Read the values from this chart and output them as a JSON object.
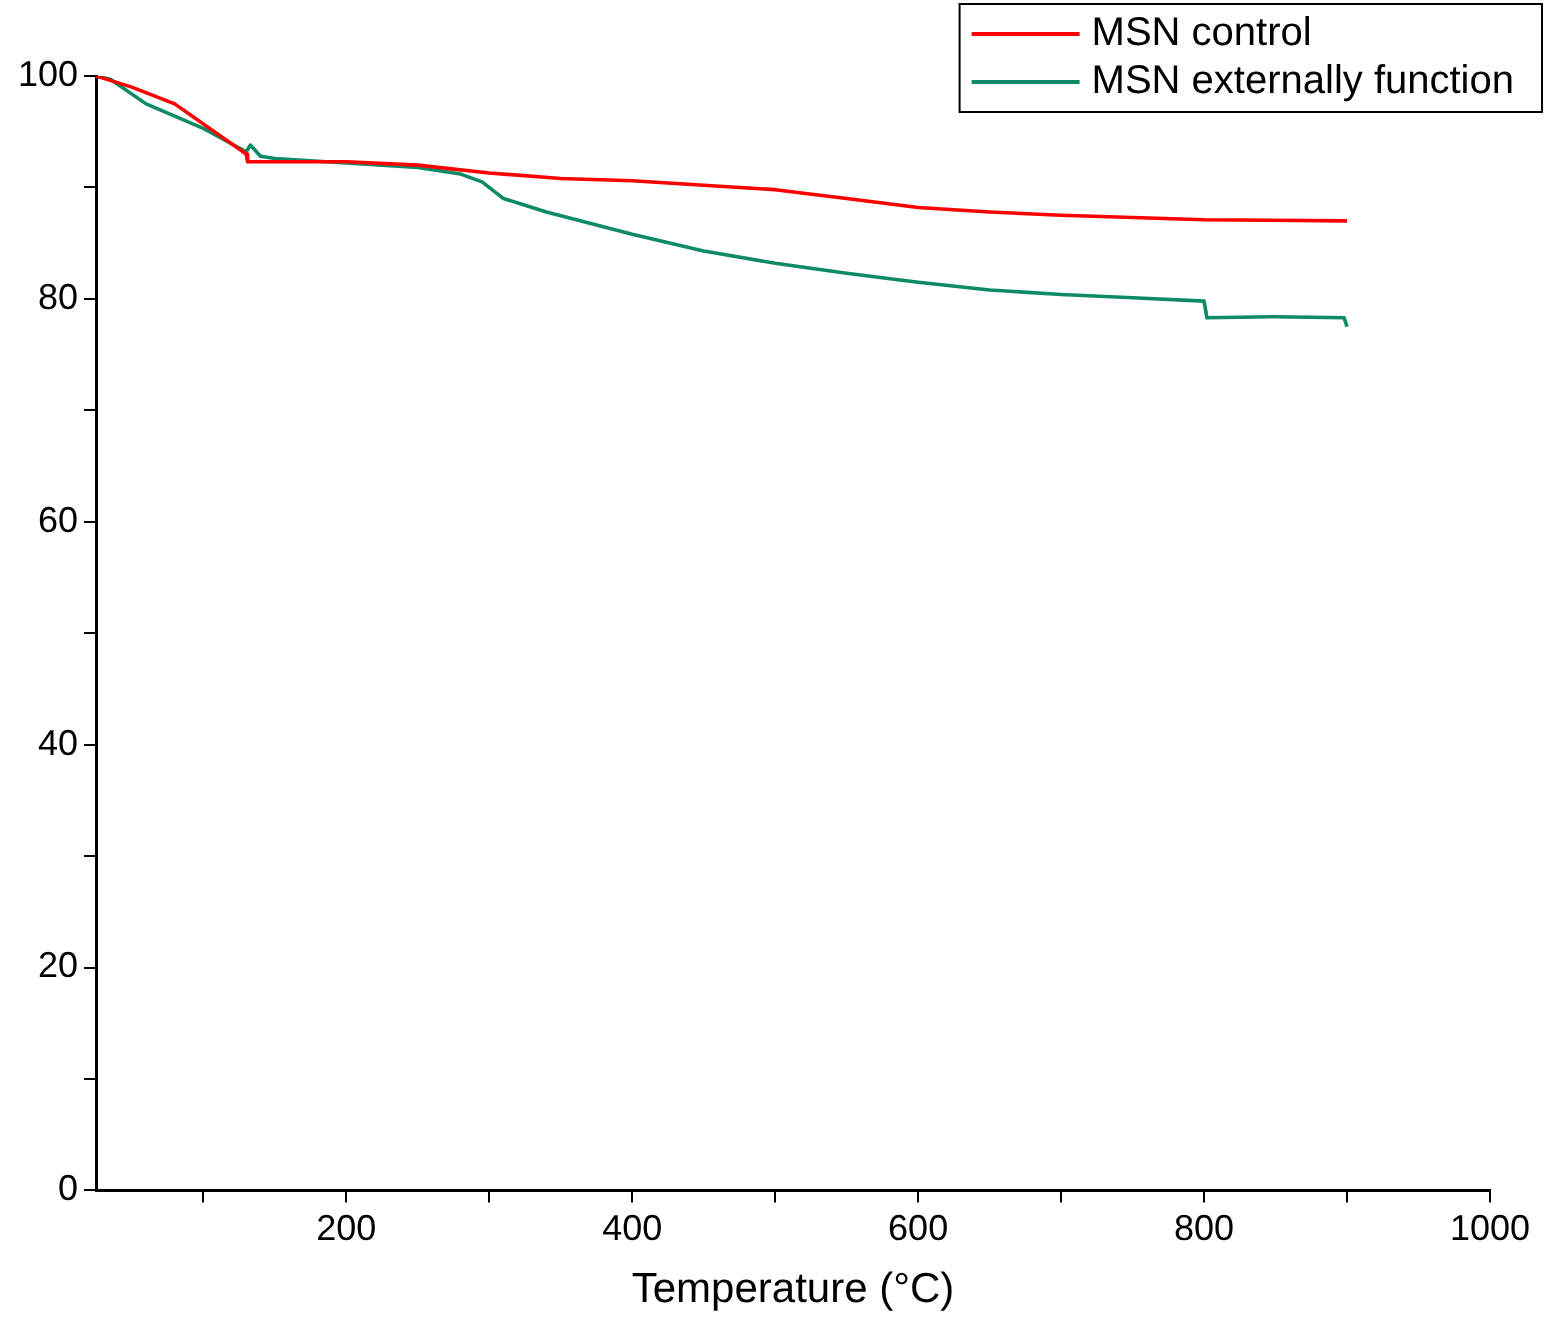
{
  "chart_data": {
    "type": "line",
    "xlabel": "Temperature (°C)",
    "xlim": [
      25,
      1000
    ],
    "ylim": [
      0,
      100
    ],
    "xticks": [
      {
        "value": 100,
        "label": null
      },
      200,
      {
        "value": 300,
        "label": null
      },
      400,
      {
        "value": 500,
        "label": null
      },
      600,
      {
        "value": 700,
        "label": null
      },
      800,
      {
        "value": 900,
        "label": null
      },
      1000
    ],
    "yticks": [
      0,
      {
        "value": 10,
        "label": null
      },
      20,
      {
        "value": 30,
        "label": null
      },
      40,
      {
        "value": 50,
        "label": null
      },
      60,
      {
        "value": 70,
        "label": null
      },
      80,
      {
        "value": 90,
        "label": null
      },
      100
    ],
    "grid": false,
    "legend": "top right",
    "marker": "none",
    "line_style": "solid",
    "series": [
      {
        "name": "MSN control",
        "color": "#ff0000",
        "x": [
          25,
          50,
          80,
          130,
          131,
          200,
          250,
          300,
          350,
          400,
          450,
          500,
          550,
          600,
          650,
          700,
          800,
          900
        ],
        "values": [
          100,
          99,
          97.5,
          93,
          92.3,
          92.3,
          92,
          91.3,
          90.8,
          90.6,
          90.2,
          89.8,
          89,
          88.2,
          87.8,
          87.5,
          87.1,
          87
        ]
      },
      {
        "name": "MSN externally function",
        "color": "#0e8a66",
        "x": [
          25,
          35,
          60,
          100,
          130,
          133,
          140,
          150,
          200,
          250,
          280,
          295,
          310,
          340,
          400,
          450,
          500,
          550,
          600,
          650,
          700,
          750,
          800,
          802,
          850,
          898,
          900
        ],
        "values": [
          100,
          99.7,
          97.5,
          95.3,
          93.2,
          93.8,
          92.8,
          92.6,
          92.2,
          91.8,
          91.2,
          90.5,
          89,
          87.8,
          85.8,
          84.3,
          83.2,
          82.3,
          81.5,
          80.8,
          80.4,
          80.1,
          79.8,
          78.3,
          78.4,
          78.3,
          77.5
        ]
      }
    ]
  }
}
